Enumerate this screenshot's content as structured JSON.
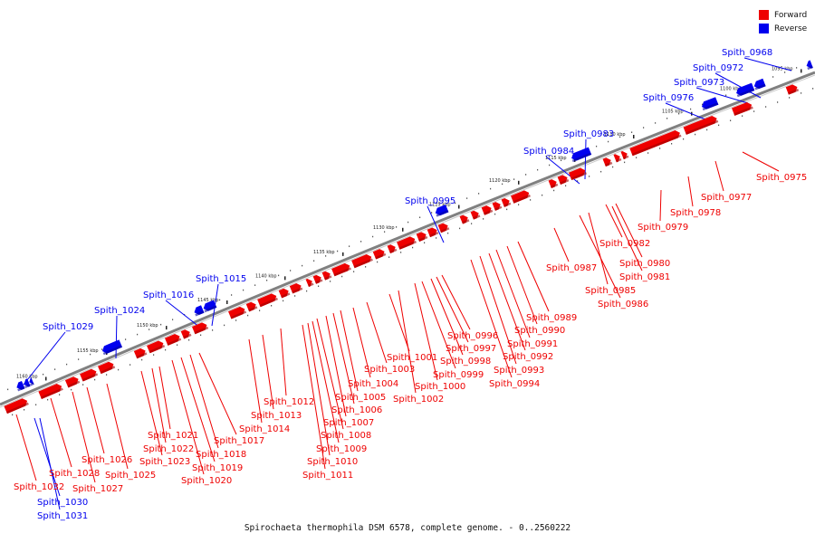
{
  "caption": "Spirochaeta thermophila DSM 6578, complete genome. - 0..2560222",
  "legend": [
    {
      "label": "Forward",
      "color": "#ee0000"
    },
    {
      "label": "Reverse",
      "color": "#0000ee"
    }
  ],
  "colors": {
    "forward": "#ee0000",
    "reverse": "#0000ee",
    "backbone": "#808080"
  },
  "ticks": [
    "1095 kbp",
    "1100 kbp",
    "1105 kbp",
    "1110 kbp",
    "1115 kbp",
    "1120 kbp",
    "1125 kbp",
    "1130 kbp",
    "1135 kbp",
    "1140 kbp",
    "1145 kbp",
    "1150 kbp",
    "1155 kbp",
    "1160 kbp"
  ],
  "genes_forward": [
    "Spith_0975",
    "Spith_0977",
    "Spith_0978",
    "Spith_0979",
    "Spith_0980",
    "Spith_0981",
    "Spith_0982",
    "Spith_0985",
    "Spith_0986",
    "Spith_0987",
    "Spith_0989",
    "Spith_0990",
    "Spith_0991",
    "Spith_0992",
    "Spith_0993",
    "Spith_0994",
    "Spith_0996",
    "Spith_0997",
    "Spith_0998",
    "Spith_0999",
    "Spith_1000",
    "Spith_1001",
    "Spith_1002",
    "Spith_1003",
    "Spith_1004",
    "Spith_1005",
    "Spith_1006",
    "Spith_1007",
    "Spith_1008",
    "Spith_1009",
    "Spith_1010",
    "Spith_1011",
    "Spith_1012",
    "Spith_1013",
    "Spith_1014",
    "Spith_1017",
    "Spith_1018",
    "Spith_1019",
    "Spith_1020",
    "Spith_1021",
    "Spith_1022",
    "Spith_1023",
    "Spith_1025",
    "Spith_1026",
    "Spith_1027",
    "Spith_1028",
    "Spith_1032"
  ],
  "genes_reverse": [
    "Spith_0968",
    "Spith_0972",
    "Spith_0973",
    "Spith_0976",
    "Spith_0983",
    "Spith_0984",
    "Spith_0995",
    "Spith_1015",
    "Spith_1016",
    "Spith_1024",
    "Spith_1029",
    "Spith_1030",
    "Spith_1031"
  ]
}
